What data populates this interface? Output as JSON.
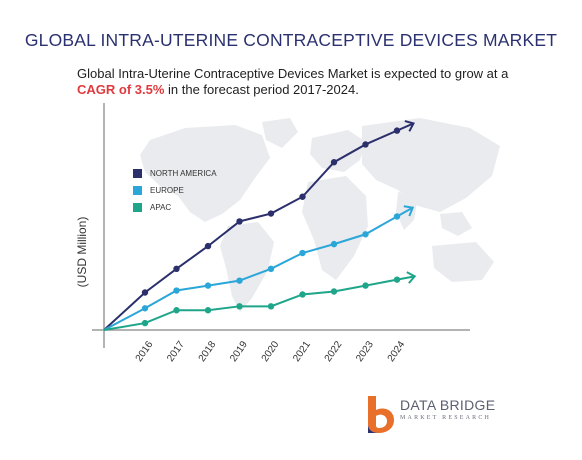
{
  "header": {
    "title": "GLOBAL INTRA-UTERINE CONTRACEPTIVE DEVICES MARKET",
    "subtitle_part1": "Global Intra-Uterine Contraceptive Devices Market is expected to grow at a ",
    "subtitle_highlight": "CAGR of 3.5%",
    "subtitle_part2": " in the forecast period 2017-2024."
  },
  "chart_data": {
    "type": "line",
    "title": "GLOBAL INTRA-UTERINE CONTRACEPTIVE DEVICES MARKET",
    "xlabel": "",
    "ylabel": "(USD Million)",
    "categories": [
      "2016",
      "2017",
      "2018",
      "2019",
      "2020",
      "2021",
      "2022",
      "2023",
      "2024"
    ],
    "series": [
      {
        "name": "NORTH AMERICA",
        "color": "#2b2f6b",
        "values": [
          38,
          62,
          85,
          110,
          118,
          135,
          170,
          188,
          202
        ]
      },
      {
        "name": "EUROPE",
        "color": "#2ba6d9",
        "values": [
          22,
          40,
          45,
          50,
          62,
          78,
          87,
          97,
          115
        ]
      },
      {
        "name": "APAC",
        "color": "#1fa58a",
        "values": [
          7,
          20,
          20,
          24,
          24,
          36,
          39,
          45,
          51
        ]
      }
    ],
    "origin_value": 0,
    "ylim": [
      0,
      230
    ],
    "grid": false,
    "legend_position": "top-left",
    "arrow_end": true,
    "background": "world-map"
  },
  "logo": {
    "name": "DATA BRIDGE",
    "tagline": "MARKET RESEARCH",
    "colors": {
      "primary": "#e8702a",
      "secondary": "#2b3170"
    }
  }
}
